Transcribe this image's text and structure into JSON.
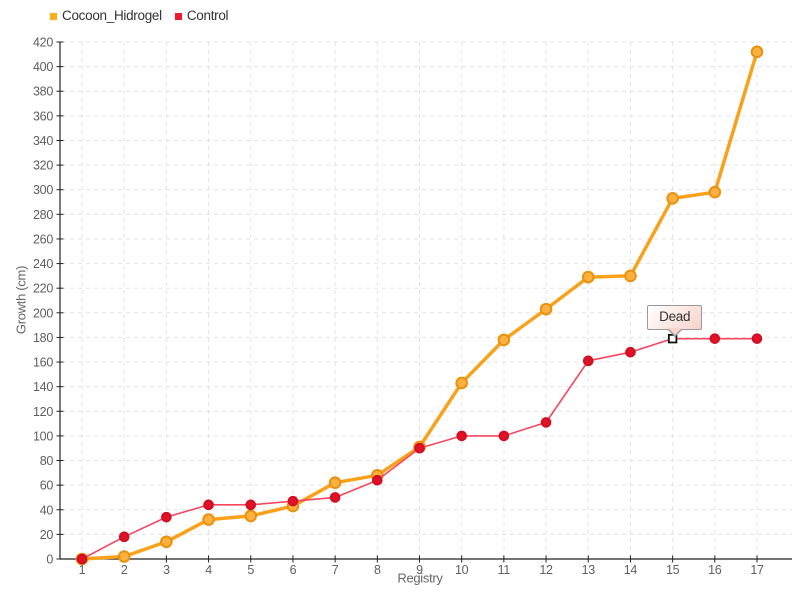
{
  "page": {
    "background": "#FFFFFF"
  },
  "legend": {
    "position": "top-left",
    "items": [
      {
        "label": "Cocoon_Hidrogel",
        "swatch_color": "#FBAC17"
      },
      {
        "label": "Control",
        "swatch_color": "#EC1B2D"
      }
    ]
  },
  "chart_data": {
    "type": "line",
    "title": "",
    "xlabel": "Registry",
    "ylabel": "Growth (cm)",
    "x": [
      1,
      2,
      3,
      4,
      5,
      6,
      7,
      8,
      9,
      10,
      11,
      12,
      13,
      14,
      15,
      16,
      17
    ],
    "xlim": [
      1,
      17
    ],
    "ylim": [
      0,
      420
    ],
    "ytick_step": 20,
    "grid": true,
    "grid_style": "dashed",
    "legend_position": "top-left",
    "series": [
      {
        "name": "Cocoon_Hidrogel",
        "line_color": "#F9A11B",
        "line_width": 3.5,
        "marker": "circle",
        "marker_size": 5.3,
        "marker_fill": "#FBB040",
        "marker_stroke": "#E8920E",
        "values": [
          0,
          2,
          14,
          32,
          35,
          43,
          62,
          68,
          91,
          143,
          178,
          203,
          229,
          230,
          293,
          298,
          412
        ]
      },
      {
        "name": "Control",
        "line_color": "#F5465F",
        "line_width": 1.6,
        "marker": "circle",
        "marker_size": 4.3,
        "marker_fill": "#E01228",
        "marker_stroke": "#D10E23",
        "values": [
          0,
          18,
          34,
          44,
          44,
          47,
          50,
          64,
          90,
          100,
          100,
          111,
          161,
          168,
          179,
          179,
          179
        ]
      }
    ],
    "annotation": {
      "label": "Dead",
      "series": "Control",
      "x": 15,
      "y": 179,
      "marker": "white-square-black-border"
    },
    "colors": {
      "axis": "#222222",
      "grid": "#E3E3E3",
      "tick_label": "#5F5F5F",
      "axis_title": "#666666",
      "annotation_marker_fill": "#FFFFFF",
      "annotation_marker_stroke": "#111111"
    }
  }
}
